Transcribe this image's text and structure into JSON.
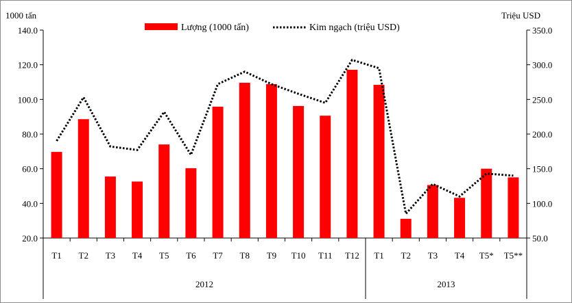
{
  "chart_data": {
    "type": "bar",
    "title": "",
    "left_axis_unit": "1000 tấn",
    "right_axis_unit": "Triệu USD",
    "categories": [
      "T1",
      "T2",
      "T3",
      "T4",
      "T5",
      "T6",
      "T7",
      "T8",
      "T9",
      "T10",
      "T11",
      "T12",
      "T1",
      "T2",
      "T3",
      "T4",
      "T5*",
      "T5**"
    ],
    "groups": [
      {
        "label": "2012",
        "count": 12
      },
      {
        "label": "2013",
        "count": 6
      }
    ],
    "series": [
      {
        "name": "Lượng (1000 tấn)",
        "type": "bar",
        "axis": "left",
        "color": "#ff0000",
        "values": [
          69.7,
          88.6,
          55.5,
          52.6,
          74.0,
          60.3,
          95.8,
          109.6,
          108.8,
          96.2,
          90.6,
          117.1,
          108.4,
          31.1,
          50.6,
          43.2,
          60.0,
          55.0
        ]
      },
      {
        "name": "Kim ngạch (triệu USD)",
        "type": "line",
        "style": "dotted",
        "axis": "right",
        "color": "#000000",
        "values": [
          190,
          253,
          182,
          177,
          232,
          170,
          272,
          290,
          272,
          258,
          245,
          307,
          295,
          85,
          128,
          110,
          143,
          140
        ]
      }
    ],
    "y_left": {
      "min": 20,
      "max": 140,
      "step": 20,
      "tick_labels": [
        "20.0",
        "40.0",
        "60.0",
        "80.0",
        "100.0",
        "120.0",
        "140.0"
      ]
    },
    "y_right": {
      "min": 50,
      "max": 350,
      "step": 50,
      "tick_labels": [
        "50.0",
        "100.0",
        "150.0",
        "200.0",
        "250.0",
        "300.0",
        "350.0"
      ]
    },
    "legend": "top-center"
  }
}
